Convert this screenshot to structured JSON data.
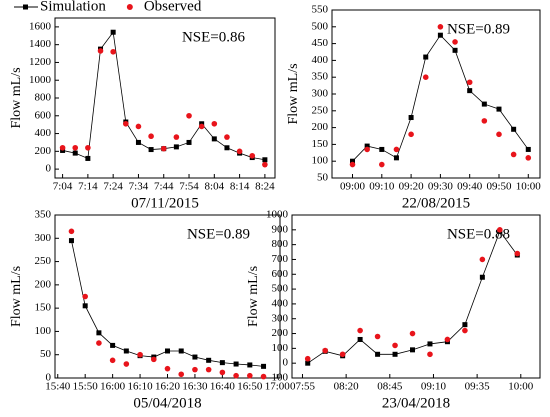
{
  "chart_data": [
    {
      "type": "line",
      "title": "07/11/2015",
      "ylabel": "Flow mL/s",
      "annotation": "NSE=0.86",
      "xlim": [
        421,
        508
      ],
      "ylim": [
        -100,
        1700
      ],
      "xticks": [
        {
          "value": 424,
          "label": "7:04"
        },
        {
          "value": 434,
          "label": "7:14"
        },
        {
          "value": 444,
          "label": "7:24"
        },
        {
          "value": 454,
          "label": "7:34"
        },
        {
          "value": 464,
          "label": "7:44"
        },
        {
          "value": 474,
          "label": "7:54"
        },
        {
          "value": 484,
          "label": "8:04"
        },
        {
          "value": 494,
          "label": "8:14"
        },
        {
          "value": 504,
          "label": "8:24"
        }
      ],
      "yticks": [
        0,
        200,
        400,
        600,
        800,
        1000,
        1200,
        1400,
        1600
      ],
      "x": [
        424,
        429,
        434,
        439,
        444,
        449,
        454,
        459,
        464,
        469,
        474,
        479,
        484,
        489,
        494,
        499,
        504
      ],
      "series": [
        {
          "name": "Simulation",
          "color": "#000000",
          "marker": "square",
          "line": true,
          "values": [
            210,
            180,
            120,
            1350,
            1540,
            530,
            300,
            220,
            230,
            250,
            300,
            510,
            340,
            240,
            180,
            130,
            105
          ]
        },
        {
          "name": "Observed",
          "color": "#e8141b",
          "marker": "circle",
          "line": false,
          "values": [
            240,
            240,
            240,
            1330,
            1320,
            510,
            480,
            370,
            230,
            360,
            600,
            480,
            510,
            360,
            200,
            150,
            50
          ]
        }
      ]
    },
    {
      "type": "line",
      "title": "22/08/2015",
      "ylabel": "Flow mL/s",
      "annotation": "NSE=0.89",
      "xlim": [
        533,
        604
      ],
      "ylim": [
        50,
        550
      ],
      "xticks": [
        {
          "value": 540,
          "label": "09:00"
        },
        {
          "value": 550,
          "label": "09:10"
        },
        {
          "value": 560,
          "label": "09:20"
        },
        {
          "value": 570,
          "label": "09:30"
        },
        {
          "value": 580,
          "label": "09:40"
        },
        {
          "value": 590,
          "label": "09:50"
        },
        {
          "value": 600,
          "label": "10:00"
        }
      ],
      "yticks": [
        50,
        100,
        150,
        200,
        250,
        300,
        350,
        400,
        450,
        500,
        550
      ],
      "x": [
        540,
        545,
        550,
        555,
        560,
        565,
        570,
        575,
        580,
        585,
        590,
        595,
        600
      ],
      "series": [
        {
          "name": "Simulation",
          "color": "#000000",
          "marker": "square",
          "line": true,
          "values": [
            100,
            145,
            135,
            110,
            230,
            410,
            475,
            430,
            310,
            270,
            255,
            195,
            135
          ]
        },
        {
          "name": "Observed",
          "color": "#e8141b",
          "marker": "circle",
          "line": false,
          "values": [
            90,
            135,
            90,
            135,
            180,
            350,
            500,
            455,
            335,
            220,
            180,
            120,
            110
          ]
        }
      ]
    },
    {
      "type": "line",
      "title": "05/04/2018",
      "ylabel": "Flow mL/s",
      "annotation": "NSE=0.89",
      "xlim": [
        939,
        1021
      ],
      "ylim": [
        0,
        350
      ],
      "xticks": [
        {
          "value": 940,
          "label": "15:40"
        },
        {
          "value": 950,
          "label": "15:50"
        },
        {
          "value": 960,
          "label": "16:00"
        },
        {
          "value": 970,
          "label": "16:10"
        },
        {
          "value": 980,
          "label": "16:20"
        },
        {
          "value": 990,
          "label": "16:30"
        },
        {
          "value": 1000,
          "label": "16:40"
        },
        {
          "value": 1010,
          "label": "16:50"
        },
        {
          "value": 1020,
          "label": "17:00"
        }
      ],
      "yticks": [
        0,
        50,
        100,
        150,
        200,
        250,
        300,
        350
      ],
      "x": [
        945,
        950,
        955,
        960,
        965,
        970,
        975,
        980,
        985,
        990,
        995,
        1000,
        1005,
        1010,
        1015
      ],
      "series": [
        {
          "name": "Simulation",
          "color": "#000000",
          "marker": "square",
          "line": true,
          "values": [
            295,
            155,
            97,
            70,
            58,
            48,
            45,
            58,
            58,
            45,
            38,
            33,
            30,
            28,
            25
          ]
        },
        {
          "name": "Observed",
          "color": "#e8141b",
          "marker": "circle",
          "line": false,
          "values": [
            315,
            175,
            75,
            38,
            30,
            50,
            40,
            20,
            8,
            18,
            18,
            12,
            5,
            5,
            3
          ]
        }
      ]
    },
    {
      "type": "line",
      "title": "23/04/2018",
      "ylabel": "Flow mL/s",
      "annotation": "NSE=0.88",
      "xlim": [
        469,
        611
      ],
      "ylim": [
        -100,
        1000
      ],
      "xticks": [
        {
          "value": 475,
          "label": "07:55"
        },
        {
          "value": 500,
          "label": "08:20"
        },
        {
          "value": 525,
          "label": "08:45"
        },
        {
          "value": 550,
          "label": "09:10"
        },
        {
          "value": 575,
          "label": "09:35"
        },
        {
          "value": 600,
          "label": "10:00"
        }
      ],
      "yticks": [
        -100,
        0,
        100,
        200,
        300,
        400,
        500,
        600,
        700,
        800,
        900,
        1000
      ],
      "x": [
        478,
        488,
        498,
        508,
        518,
        528,
        538,
        548,
        558,
        568,
        578,
        588,
        598
      ],
      "series": [
        {
          "name": "Simulation",
          "color": "#000000",
          "marker": "square",
          "line": true,
          "values": [
            0,
            80,
            50,
            160,
            60,
            60,
            90,
            130,
            145,
            260,
            580,
            890,
            730
          ]
        },
        {
          "name": "Observed",
          "color": "#e8141b",
          "marker": "circle",
          "line": false,
          "values": [
            30,
            85,
            60,
            220,
            180,
            120,
            200,
            60,
            160,
            220,
            700,
            900,
            740
          ]
        }
      ]
    }
  ]
}
